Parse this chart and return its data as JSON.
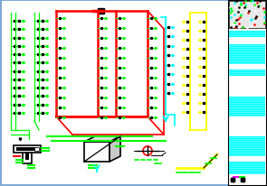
{
  "bg_color": "#ffffff",
  "border_color": "#6699cc",
  "cyan_color": "#00ffff",
  "green_color": "#00ff00",
  "red_color": "#ff0000",
  "yellow_color": "#ffff00",
  "black_color": "#000000",
  "white_color": "#ffffff",
  "magenta_color": "#ff00ff"
}
